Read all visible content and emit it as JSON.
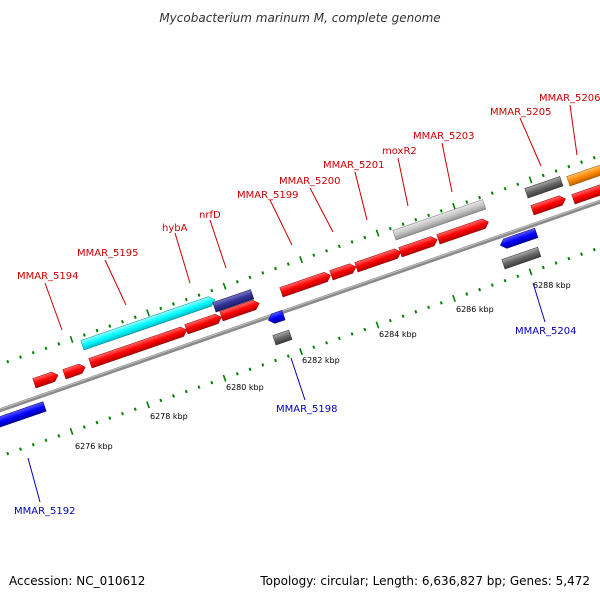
{
  "title": "Mycobacterium marinum M, complete genome",
  "footer": {
    "accession": "Accession: NC_010612",
    "summary": "Topology: circular; Length: 6,636,827 bp; Genes: 5,472"
  },
  "colors": {
    "forward_label": "#cc0000",
    "reverse_label": "#0000bb",
    "backbone": "#888888",
    "tick": "#008000",
    "red_cds": "#ff0000",
    "blue_cds": "#0000ff",
    "cyan_cds": "#00ffff",
    "navy_cds": "#333399",
    "gray_cds": "#666666",
    "lightgray_cds": "#bbbbbb",
    "orange_cds": "#ff8c00"
  },
  "scale_labels": [
    "6276 kbp",
    "6278 kbp",
    "6280 kbp",
    "6282 kbp",
    "6284 kbp",
    "6286 kbp",
    "6288 kbp"
  ],
  "gene_labels": {
    "mmar_5192": "MMAR_5192",
    "mmar_5194": "MMAR_5194",
    "mmar_5195": "MMAR_5195",
    "hyba": "hybA",
    "nrfd": "nrfD",
    "mmar_5198": "MMAR_5198",
    "mmar_5199": "MMAR_5199",
    "mmar_5200": "MMAR_5200",
    "mmar_5201": "MMAR_5201",
    "moxr2": "moxR2",
    "mmar_5203": "MMAR_5203",
    "mmar_5204": "MMAR_5204",
    "mmar_5205": "MMAR_5205",
    "mmar_5206": "MMAR_5206"
  }
}
